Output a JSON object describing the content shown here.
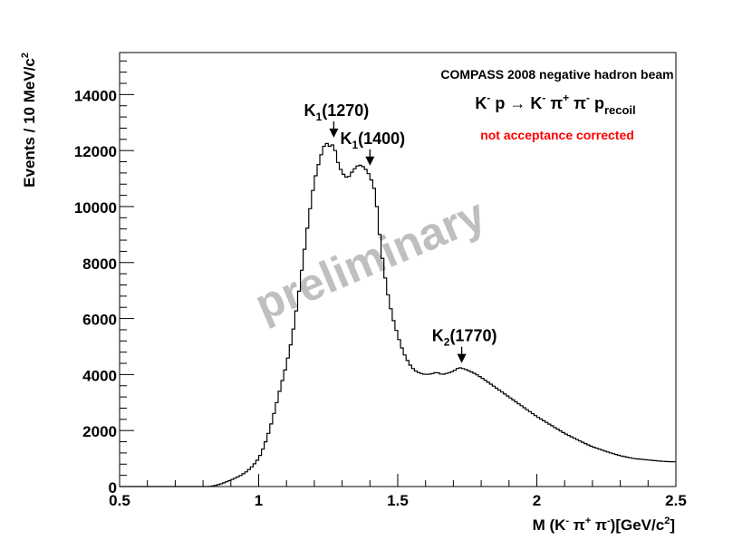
{
  "chart_data": {
    "type": "line",
    "style": "histogram-step",
    "xlabel_parts": [
      "M (K",
      "-",
      " π",
      "+",
      " π",
      "-",
      ")[GeV/c",
      "2",
      "]"
    ],
    "ylabel_parts": [
      "Events / 10 MeV/c",
      "2"
    ],
    "xlim": [
      0.5,
      2.5
    ],
    "ylim": [
      0,
      15500
    ],
    "x_ticks": [
      0.5,
      1,
      1.5,
      2,
      2.5
    ],
    "x_tick_labels": [
      "0.5",
      "1",
      "1.5",
      "2",
      "2.5"
    ],
    "y_ticks": [
      0,
      2000,
      4000,
      6000,
      8000,
      10000,
      12000,
      14000
    ],
    "y_tick_labels": [
      "0",
      "2000",
      "4000",
      "6000",
      "8000",
      "10000",
      "12000",
      "14000"
    ],
    "grid": false,
    "bin_width": 0.01,
    "series": [
      {
        "color": "#000000",
        "x": [
          0.82,
          0.84,
          0.86,
          0.88,
          0.9,
          0.92,
          0.94,
          0.96,
          0.98,
          1.0,
          1.02,
          1.04,
          1.06,
          1.08,
          1.1,
          1.12,
          1.14,
          1.16,
          1.18,
          1.2,
          1.22,
          1.24,
          1.26,
          1.27,
          1.28,
          1.3,
          1.32,
          1.34,
          1.36,
          1.38,
          1.4,
          1.42,
          1.44,
          1.46,
          1.48,
          1.5,
          1.52,
          1.54,
          1.56,
          1.58,
          1.6,
          1.62,
          1.64,
          1.66,
          1.68,
          1.7,
          1.72,
          1.74,
          1.76,
          1.78,
          1.8,
          1.85,
          1.9,
          1.95,
          2.0,
          2.05,
          2.1,
          2.15,
          2.2,
          2.25,
          2.3,
          2.35,
          2.4,
          2.45,
          2.5
        ],
        "y": [
          0,
          30,
          80,
          150,
          230,
          320,
          420,
          560,
          750,
          1000,
          1450,
          2050,
          2800,
          3600,
          4350,
          5300,
          6600,
          8100,
          9600,
          10900,
          11700,
          12300,
          12100,
          12300,
          11700,
          11200,
          11000,
          11300,
          11500,
          11400,
          11100,
          10500,
          8500,
          7100,
          6100,
          5400,
          4800,
          4400,
          4150,
          4050,
          4000,
          4020,
          4080,
          4000,
          4050,
          4120,
          4250,
          4200,
          4120,
          4020,
          3900,
          3550,
          3200,
          2850,
          2500,
          2200,
          1900,
          1650,
          1420,
          1250,
          1100,
          1000,
          950,
          900,
          880
        ]
      }
    ],
    "annotations": [
      {
        "id": "k1-1270",
        "base": "K",
        "sub": "1",
        "rest": "(1270)",
        "x": 1.27,
        "y": 12300
      },
      {
        "id": "k1-1400",
        "base": "K",
        "sub": "1",
        "rest": "(1400)",
        "x": 1.4,
        "y": 11300
      },
      {
        "id": "k2-1770",
        "base": "K",
        "sub": "2",
        "rest": "(1770)",
        "x": 1.73,
        "y": 4250
      }
    ],
    "info_title": "COMPASS 2008 negative hadron beam",
    "reaction_parts": [
      "K",
      "-",
      " p → K",
      "-",
      " π",
      "+",
      " π",
      "-",
      " p",
      "recoil"
    ],
    "note": "not acceptance corrected",
    "note_color": "#ff0000",
    "watermark": "preliminary",
    "watermark_color": "#bfbfbf"
  }
}
